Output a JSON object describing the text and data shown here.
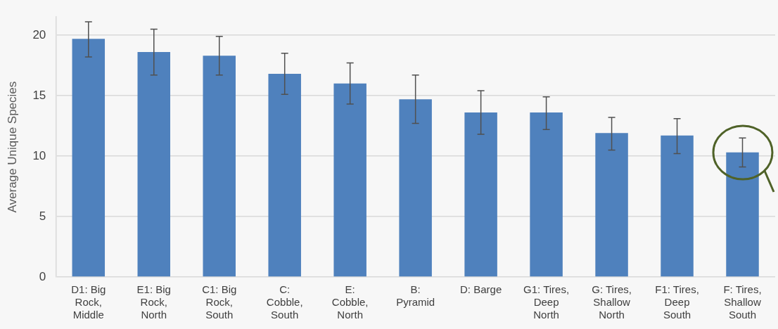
{
  "chart_data": {
    "type": "bar",
    "ylabel": "Average Unique Species",
    "categories": [
      "D1: Big Rock, Middle",
      "E1: Big Rock, North",
      "C1: Big Rock, South",
      "C: Cobble, South",
      "E: Cobble, North",
      "B: Pyramid",
      "D: Barge",
      "G1: Tires, Deep North",
      "G: Tires, Shallow North",
      "F1: Tires, Deep South",
      "F: Tires, Shallow South"
    ],
    "values": [
      19.7,
      18.6,
      18.3,
      16.8,
      16.0,
      14.7,
      13.6,
      13.6,
      11.9,
      11.7,
      10.3
    ],
    "errors": [
      [
        18.2,
        21.1
      ],
      [
        16.7,
        20.5
      ],
      [
        16.7,
        19.9
      ],
      [
        15.1,
        18.5
      ],
      [
        14.3,
        17.7
      ],
      [
        12.7,
        16.7
      ],
      [
        11.8,
        15.4
      ],
      [
        12.2,
        14.9
      ],
      [
        10.5,
        13.2
      ],
      [
        10.2,
        13.1
      ],
      [
        9.1,
        11.5
      ]
    ],
    "color": "#4f81bd",
    "ylim": [
      0,
      21.5
    ],
    "yticks": [
      0,
      5,
      10,
      15,
      20
    ],
    "grid": "y",
    "legend": false
  }
}
